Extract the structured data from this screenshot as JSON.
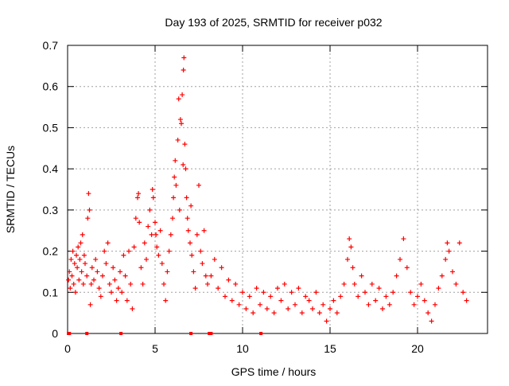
{
  "chart_data": {
    "type": "scatter",
    "title": "Day 193 of 2025, SRMTID for receiver p032",
    "xlabel": "GPS time / hours",
    "ylabel": "SRMTID / TECUs",
    "xlim": [
      0,
      24
    ],
    "ylim": [
      0,
      0.7
    ],
    "grid": true,
    "marker": "+",
    "x_ticks": [
      0,
      5,
      10,
      15,
      20
    ],
    "x_tick_labels": [
      "0",
      "5",
      "10",
      "15",
      "20"
    ],
    "y_ticks": [
      0,
      0.1,
      0.2,
      0.3,
      0.4,
      0.5,
      0.6,
      0.7
    ],
    "y_tick_labels": [
      "0",
      "0.1",
      "0.2",
      "0.3",
      "0.4",
      "0.5",
      "0.6",
      "0.7"
    ],
    "colors": {
      "series": "#ff0000",
      "grid": "#a0a0a0",
      "axes": "#000000"
    },
    "series": [
      {
        "name": "SRMTID",
        "points": [
          [
            0.05,
            0.13
          ],
          [
            0.1,
            0.15
          ],
          [
            0.15,
            0.11
          ],
          [
            0.2,
            0.18
          ],
          [
            0.25,
            0.14
          ],
          [
            0.3,
            0.2
          ],
          [
            0.35,
            0.12
          ],
          [
            0.4,
            0.17
          ],
          [
            0.45,
            0.1
          ],
          [
            0.5,
            0.19
          ],
          [
            0.55,
            0.16
          ],
          [
            0.6,
            0.21
          ],
          [
            0.65,
            0.13
          ],
          [
            0.7,
            0.18
          ],
          [
            0.75,
            0.22
          ],
          [
            0.8,
            0.15
          ],
          [
            0.85,
            0.24
          ],
          [
            0.9,
            0.12
          ],
          [
            0.95,
            0.19
          ],
          [
            1.0,
            0.17
          ],
          [
            1.1,
            0.14
          ],
          [
            1.15,
            0.28
          ],
          [
            1.2,
            0.34
          ],
          [
            1.25,
            0.3
          ],
          [
            1.3,
            0.07
          ],
          [
            1.35,
            0.12
          ],
          [
            1.4,
            0.16
          ],
          [
            1.5,
            0.13
          ],
          [
            1.6,
            0.18
          ],
          [
            1.7,
            0.15
          ],
          [
            1.8,
            0.11
          ],
          [
            1.9,
            0.09
          ],
          [
            2.0,
            0.14
          ],
          [
            2.1,
            0.2
          ],
          [
            2.2,
            0.17
          ],
          [
            2.3,
            0.22
          ],
          [
            2.4,
            0.12
          ],
          [
            2.5,
            0.1
          ],
          [
            2.6,
            0.16
          ],
          [
            2.7,
            0.13
          ],
          [
            2.8,
            0.08
          ],
          [
            2.9,
            0.11
          ],
          [
            3.0,
            0.15
          ],
          [
            3.1,
            0.1
          ],
          [
            3.2,
            0.19
          ],
          [
            3.3,
            0.14
          ],
          [
            3.4,
            0.08
          ],
          [
            3.5,
            0.2
          ],
          [
            3.6,
            0.12
          ],
          [
            3.7,
            0.06
          ],
          [
            3.8,
            0.21
          ],
          [
            3.9,
            0.28
          ],
          [
            4.0,
            0.33
          ],
          [
            4.05,
            0.34
          ],
          [
            4.1,
            0.27
          ],
          [
            4.2,
            0.16
          ],
          [
            4.3,
            0.12
          ],
          [
            4.4,
            0.22
          ],
          [
            4.5,
            0.18
          ],
          [
            4.6,
            0.26
          ],
          [
            4.7,
            0.3
          ],
          [
            4.8,
            0.24
          ],
          [
            4.85,
            0.35
          ],
          [
            4.9,
            0.33
          ],
          [
            5.0,
            0.27
          ],
          [
            5.05,
            0.24
          ],
          [
            5.1,
            0.21
          ],
          [
            5.2,
            0.19
          ],
          [
            5.3,
            0.25
          ],
          [
            5.4,
            0.17
          ],
          [
            5.5,
            0.12
          ],
          [
            5.6,
            0.08
          ],
          [
            5.7,
            0.15
          ],
          [
            5.8,
            0.2
          ],
          [
            5.9,
            0.24
          ],
          [
            6.0,
            0.28
          ],
          [
            6.05,
            0.33
          ],
          [
            6.1,
            0.38
          ],
          [
            6.15,
            0.42
          ],
          [
            6.2,
            0.36
          ],
          [
            6.3,
            0.47
          ],
          [
            6.35,
            0.57
          ],
          [
            6.4,
            0.3
          ],
          [
            6.45,
            0.52
          ],
          [
            6.5,
            0.51
          ],
          [
            6.55,
            0.58
          ],
          [
            6.6,
            0.41
          ],
          [
            6.62,
            0.64
          ],
          [
            6.65,
            0.67
          ],
          [
            6.7,
            0.46
          ],
          [
            6.75,
            0.4
          ],
          [
            6.8,
            0.33
          ],
          [
            6.85,
            0.28
          ],
          [
            6.9,
            0.25
          ],
          [
            7.0,
            0.22
          ],
          [
            7.05,
            0.31
          ],
          [
            7.1,
            0.19
          ],
          [
            7.2,
            0.15
          ],
          [
            7.3,
            0.11
          ],
          [
            7.4,
            0.24
          ],
          [
            7.5,
            0.36
          ],
          [
            7.6,
            0.2
          ],
          [
            7.7,
            0.17
          ],
          [
            7.8,
            0.25
          ],
          [
            7.9,
            0.14
          ],
          [
            8.0,
            0.12
          ],
          [
            8.2,
            0.14
          ],
          [
            8.4,
            0.18
          ],
          [
            8.6,
            0.11
          ],
          [
            8.8,
            0.16
          ],
          [
            9.0,
            0.09
          ],
          [
            9.2,
            0.13
          ],
          [
            9.4,
            0.08
          ],
          [
            9.6,
            0.12
          ],
          [
            9.8,
            0.07
          ],
          [
            10.0,
            0.1
          ],
          [
            10.2,
            0.06
          ],
          [
            10.4,
            0.09
          ],
          [
            10.6,
            0.05
          ],
          [
            10.8,
            0.11
          ],
          [
            11.0,
            0.07
          ],
          [
            11.2,
            0.1
          ],
          [
            11.4,
            0.06
          ],
          [
            11.6,
            0.09
          ],
          [
            11.8,
            0.05
          ],
          [
            12.0,
            0.11
          ],
          [
            12.2,
            0.08
          ],
          [
            12.4,
            0.12
          ],
          [
            12.6,
            0.06
          ],
          [
            12.8,
            0.1
          ],
          [
            13.0,
            0.07
          ],
          [
            13.2,
            0.11
          ],
          [
            13.4,
            0.05
          ],
          [
            13.6,
            0.09
          ],
          [
            13.8,
            0.08
          ],
          [
            14.0,
            0.06
          ],
          [
            14.2,
            0.1
          ],
          [
            14.4,
            0.05
          ],
          [
            14.6,
            0.07
          ],
          [
            14.8,
            0.03
          ],
          [
            15.0,
            0.06
          ],
          [
            15.2,
            0.08
          ],
          [
            15.4,
            0.05
          ],
          [
            15.6,
            0.09
          ],
          [
            15.8,
            0.12
          ],
          [
            16.0,
            0.18
          ],
          [
            16.1,
            0.23
          ],
          [
            16.2,
            0.21
          ],
          [
            16.3,
            0.16
          ],
          [
            16.4,
            0.12
          ],
          [
            16.6,
            0.09
          ],
          [
            16.8,
            0.14
          ],
          [
            17.0,
            0.1
          ],
          [
            17.2,
            0.07
          ],
          [
            17.4,
            0.12
          ],
          [
            17.6,
            0.08
          ],
          [
            17.8,
            0.11
          ],
          [
            18.0,
            0.06
          ],
          [
            18.2,
            0.09
          ],
          [
            18.4,
            0.07
          ],
          [
            18.6,
            0.1
          ],
          [
            18.8,
            0.14
          ],
          [
            19.0,
            0.18
          ],
          [
            19.2,
            0.23
          ],
          [
            19.4,
            0.16
          ],
          [
            19.6,
            0.1
          ],
          [
            19.8,
            0.07
          ],
          [
            20.0,
            0.09
          ],
          [
            20.2,
            0.12
          ],
          [
            20.4,
            0.08
          ],
          [
            20.6,
            0.05
          ],
          [
            20.8,
            0.03
          ],
          [
            21.0,
            0.07
          ],
          [
            21.2,
            0.11
          ],
          [
            21.4,
            0.14
          ],
          [
            21.6,
            0.18
          ],
          [
            21.7,
            0.22
          ],
          [
            21.8,
            0.2
          ],
          [
            22.0,
            0.15
          ],
          [
            22.2,
            0.12
          ],
          [
            22.4,
            0.22
          ],
          [
            22.6,
            0.1
          ],
          [
            22.8,
            0.08
          ]
        ]
      }
    ],
    "zero_markers": [
      0.05,
      0.1,
      1.1,
      3.05,
      7.05,
      8.1,
      8.2,
      11.05
    ]
  }
}
